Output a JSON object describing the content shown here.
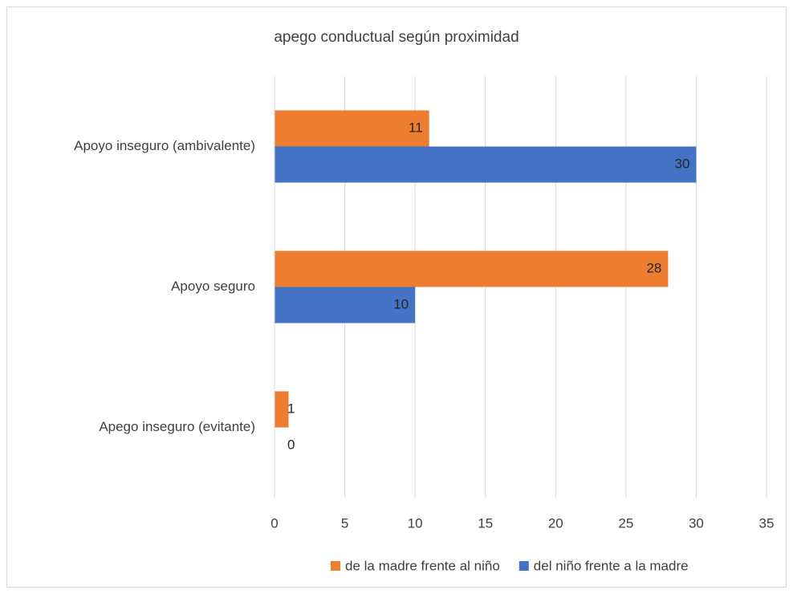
{
  "chart_data": {
    "type": "bar",
    "orientation": "horizontal",
    "title": "apego conductual  según proximidad",
    "categories": [
      "Apoyo inseguro (ambivalente)",
      "Apoyo seguro",
      "Apego inseguro (evitante)"
    ],
    "series": [
      {
        "name": "de la madre frente al niño",
        "color": "#ed7d31",
        "values": [
          11,
          28,
          1
        ]
      },
      {
        "name": "del niño frente a la madre",
        "color": "#4472c4",
        "values": [
          30,
          10,
          0
        ]
      }
    ],
    "xlim": [
      0,
      35
    ],
    "xticks": [
      0,
      5,
      10,
      15,
      20,
      25,
      30,
      35
    ],
    "grid": true,
    "legend": "bottom"
  }
}
